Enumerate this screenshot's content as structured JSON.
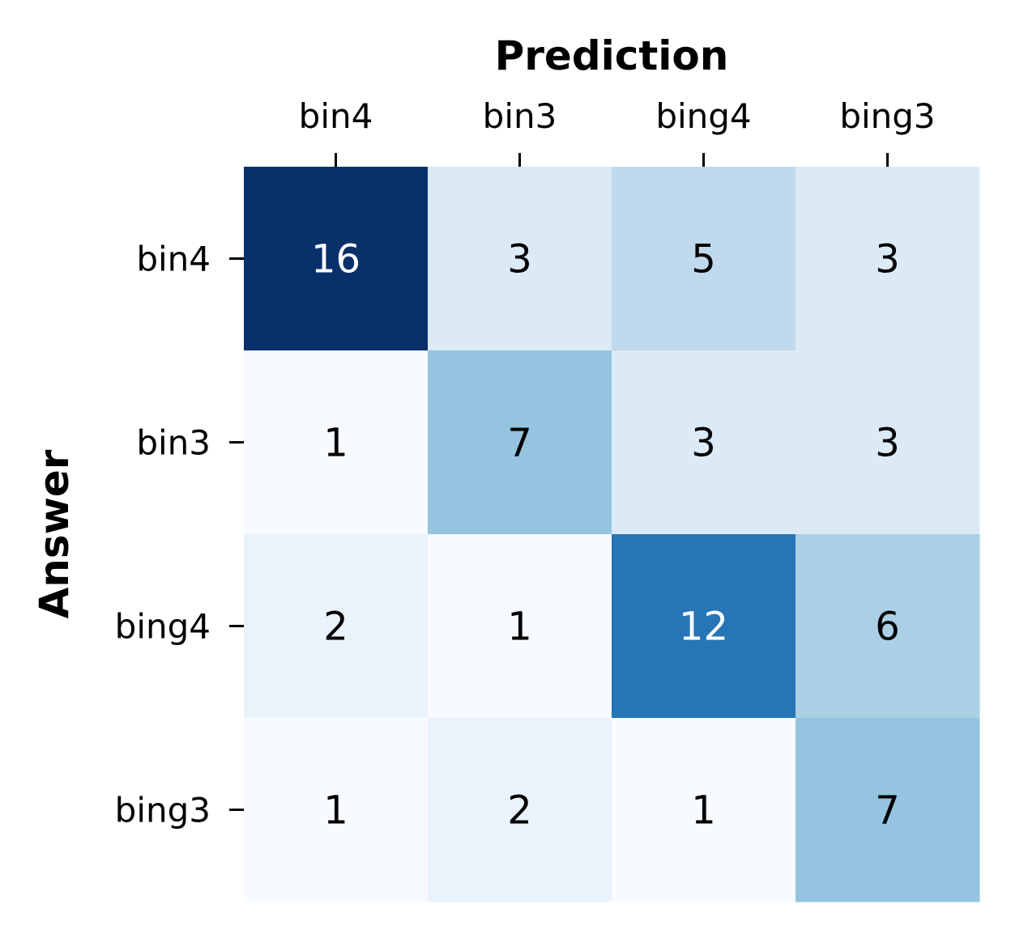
{
  "chart_data": {
    "type": "heatmap",
    "title": "",
    "xlabel": "Prediction",
    "ylabel": "Answer",
    "x_categories": [
      "bin4",
      "bin3",
      "bing4",
      "bing3"
    ],
    "y_categories": [
      "bin4",
      "bin3",
      "bing4",
      "bing3"
    ],
    "values": [
      [
        16,
        3,
        5,
        3
      ],
      [
        1,
        7,
        3,
        3
      ],
      [
        2,
        1,
        12,
        6
      ],
      [
        1,
        2,
        1,
        7
      ]
    ],
    "x_axis_position": "top",
    "colormap": "Blues",
    "value_range": [
      1,
      16
    ],
    "colorbar": false,
    "grid": false,
    "colors": {
      "low": "#f7fbff",
      "high": "#08306b",
      "text_dark": "#000000",
      "text_light": "#ffffff"
    }
  }
}
